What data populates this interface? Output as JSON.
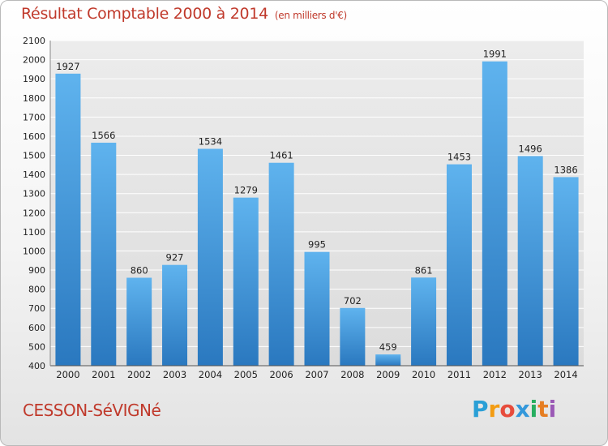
{
  "header": {
    "title": "Résultat Comptable 2000 à 2014",
    "unit": "(en milliers d'€)"
  },
  "footer": {
    "city": "CESSON-SéVIGNé",
    "logo": {
      "letters": [
        "P",
        "r",
        "o",
        "x",
        "i",
        "t",
        "i"
      ],
      "colors": [
        "#2a9fd6",
        "#f39c12",
        "#e74c3c",
        "#3498db",
        "#27ae60",
        "#e67e22",
        "#9b59b6"
      ]
    }
  },
  "chart_data": {
    "type": "bar",
    "title": "Résultat Comptable 2000 à 2014",
    "subtitle": "(en milliers d'€)",
    "xlabel": "",
    "ylabel": "",
    "categories": [
      "2000",
      "2001",
      "2002",
      "2003",
      "2004",
      "2005",
      "2006",
      "2007",
      "2008",
      "2009",
      "2010",
      "2011",
      "2012",
      "2013",
      "2014"
    ],
    "values": [
      1927,
      1566,
      860,
      927,
      1534,
      1279,
      1461,
      995,
      702,
      459,
      861,
      1453,
      1991,
      1496,
      1386
    ],
    "ylim": [
      400,
      2100
    ],
    "yticks": [
      400,
      500,
      600,
      700,
      800,
      900,
      1000,
      1100,
      1200,
      1300,
      1400,
      1500,
      1600,
      1700,
      1800,
      1900,
      2000,
      2100
    ],
    "grid": true,
    "bar_color": "#3d8fd4",
    "legend": "none"
  }
}
